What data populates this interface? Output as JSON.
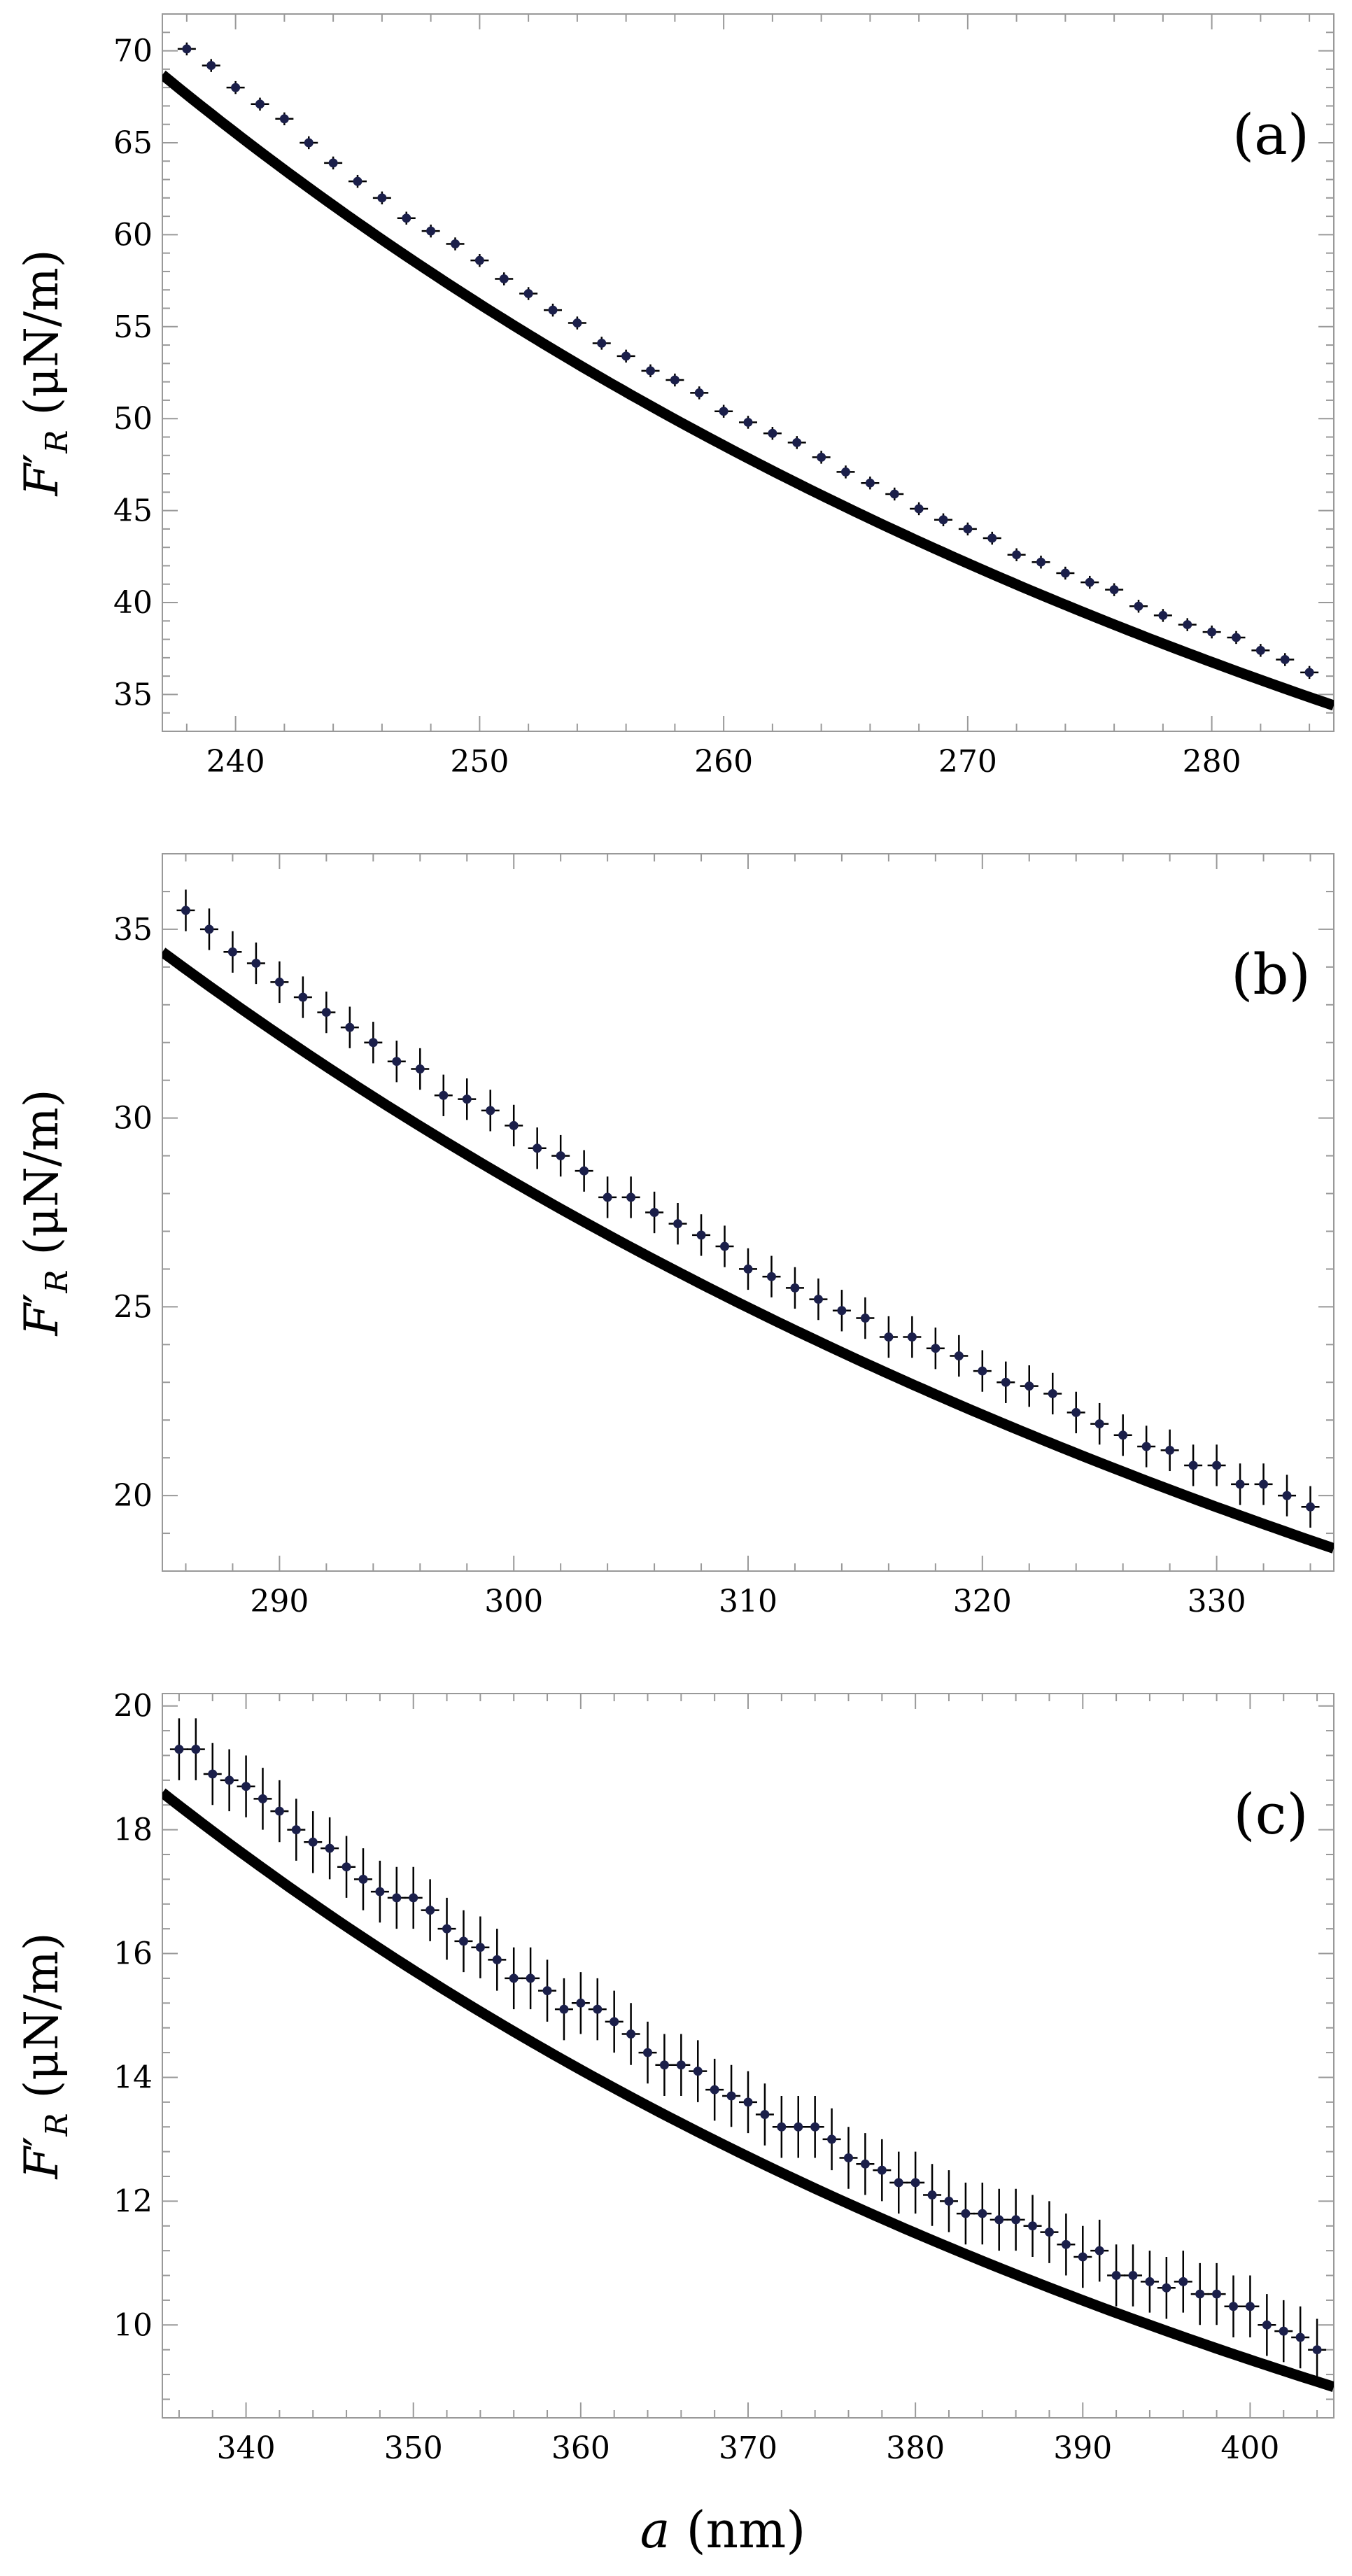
{
  "figure": {
    "xlabel_symbol": "a",
    "xlabel_unit": " (nm)",
    "ylabel_symbol": "F",
    "ylabel_prime": "′",
    "ylabel_sub": "R",
    "ylabel_unit": " (μN/m)",
    "colors": {
      "theory": "#000000",
      "data": "#1b1f4a",
      "errorbar": "#000000",
      "frame": "#999999"
    }
  },
  "chart_data": [
    {
      "type": "scatter",
      "panel": "(a)",
      "xlabel": "",
      "ylabel": "F′R (μN/m)",
      "xlim": [
        237,
        285
      ],
      "ylim": [
        33,
        72
      ],
      "xticks": [
        240,
        250,
        260,
        270,
        280
      ],
      "yticks": [
        35,
        40,
        45,
        50,
        55,
        60,
        65,
        70
      ],
      "series": [
        {
          "name": "theory",
          "kind": "line",
          "func": {
            "form": "power",
            "a0": 237,
            "y0": 68.7,
            "a1": 285,
            "y1": 34.4
          }
        },
        {
          "name": "experiment",
          "kind": "points",
          "x_start": 238,
          "x_step": 1,
          "values": [
            70.1,
            69.2,
            68.0,
            67.1,
            66.3,
            65.0,
            63.9,
            62.9,
            62.0,
            60.9,
            60.2,
            59.5,
            58.6,
            57.6,
            56.8,
            55.9,
            55.2,
            54.1,
            53.4,
            52.6,
            52.1,
            51.4,
            50.4,
            49.8,
            49.2,
            48.7,
            47.9,
            47.1,
            46.5,
            45.9,
            45.1,
            44.5,
            44.0,
            43.5,
            42.6,
            42.2,
            41.6,
            41.1,
            40.7,
            39.8,
            39.3,
            38.8,
            38.4,
            38.1,
            37.4,
            36.9,
            36.2
          ],
          "error": 0.35
        }
      ]
    },
    {
      "type": "scatter",
      "panel": "(b)",
      "xlabel": "",
      "ylabel": "F′R (μN/m)",
      "xlim": [
        285,
        335
      ],
      "ylim": [
        18,
        37
      ],
      "xticks": [
        290,
        300,
        310,
        320,
        330
      ],
      "yticks": [
        20,
        25,
        30,
        35
      ],
      "series": [
        {
          "name": "theory",
          "kind": "line",
          "func": {
            "form": "power",
            "a0": 285,
            "y0": 34.4,
            "a1": 335,
            "y1": 18.6
          }
        },
        {
          "name": "experiment",
          "kind": "points",
          "x_start": 286,
          "x_step": 1,
          "values": [
            35.5,
            35.0,
            34.4,
            34.1,
            33.6,
            33.2,
            32.8,
            32.4,
            32.0,
            31.5,
            31.3,
            30.6,
            30.5,
            30.2,
            29.8,
            29.2,
            29.0,
            28.6,
            27.9,
            27.9,
            27.5,
            27.2,
            26.9,
            26.6,
            26.0,
            25.8,
            25.5,
            25.2,
            24.9,
            24.7,
            24.2,
            24.2,
            23.9,
            23.7,
            23.3,
            23.0,
            22.9,
            22.7,
            22.2,
            21.9,
            21.6,
            21.3,
            21.2,
            20.8,
            20.8,
            20.3,
            20.3,
            20.0,
            19.7
          ],
          "error": 0.55
        }
      ]
    },
    {
      "type": "scatter",
      "panel": "(c)",
      "xlabel": "a (nm)",
      "ylabel": "F′R (μN/m)",
      "xlim": [
        335,
        405
      ],
      "ylim": [
        8.5,
        20.2
      ],
      "xticks": [
        340,
        350,
        360,
        370,
        380,
        390,
        400
      ],
      "yticks": [
        10,
        12,
        14,
        16,
        18,
        20
      ],
      "series": [
        {
          "name": "theory",
          "kind": "line",
          "func": {
            "form": "power",
            "a0": 335,
            "y0": 18.6,
            "a1": 405,
            "y1": 9.0
          }
        },
        {
          "name": "experiment",
          "kind": "points",
          "x_start": 336,
          "x_step": 1,
          "values": [
            19.3,
            19.3,
            18.9,
            18.8,
            18.7,
            18.5,
            18.3,
            18.0,
            17.8,
            17.7,
            17.4,
            17.2,
            17.0,
            16.9,
            16.9,
            16.7,
            16.4,
            16.2,
            16.1,
            15.9,
            15.6,
            15.6,
            15.4,
            15.1,
            15.2,
            15.1,
            14.9,
            14.7,
            14.4,
            14.2,
            14.2,
            14.1,
            13.8,
            13.7,
            13.6,
            13.4,
            13.2,
            13.2,
            13.2,
            13.0,
            12.7,
            12.6,
            12.5,
            12.3,
            12.3,
            12.1,
            12.0,
            11.8,
            11.8,
            11.7,
            11.7,
            11.6,
            11.5,
            11.3,
            11.1,
            11.2,
            10.8,
            10.8,
            10.7,
            10.6,
            10.7,
            10.5,
            10.5,
            10.3,
            10.3,
            10.0,
            9.9,
            9.8,
            9.6
          ],
          "error": 0.5
        }
      ]
    }
  ]
}
